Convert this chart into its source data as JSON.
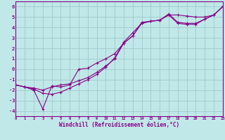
{
  "xlabel": "Windchill (Refroidissement éolien,°C)",
  "background_color": "#c0e8e8",
  "grid_color": "#a0c8c8",
  "line_color": "#880088",
  "xlim": [
    0,
    23
  ],
  "ylim": [
    -4.5,
    6.5
  ],
  "xticks": [
    0,
    1,
    2,
    3,
    4,
    5,
    6,
    7,
    8,
    9,
    10,
    11,
    12,
    13,
    14,
    15,
    16,
    17,
    18,
    19,
    20,
    21,
    22,
    23
  ],
  "yticks": [
    -4,
    -3,
    -2,
    -1,
    0,
    1,
    2,
    3,
    4,
    5,
    6
  ],
  "line1_x": [
    0,
    1,
    2,
    3,
    4,
    5,
    6,
    7,
    8,
    9,
    10,
    11,
    12,
    13,
    14,
    15,
    16,
    17,
    18,
    19,
    20,
    21,
    22,
    23
  ],
  "line1_y": [
    -1.5,
    -1.7,
    -1.8,
    -2.0,
    -1.7,
    -1.5,
    -1.4,
    -1.1,
    -0.8,
    -0.3,
    0.3,
    1.0,
    2.5,
    3.2,
    4.4,
    4.6,
    4.7,
    5.2,
    5.2,
    5.1,
    5.0,
    5.0,
    5.2,
    6.0
  ],
  "line2_x": [
    0,
    1,
    2,
    3,
    4,
    5,
    6,
    7,
    8,
    9,
    10,
    11,
    12,
    13,
    14,
    15,
    16,
    17,
    18,
    19,
    20,
    21,
    22,
    23
  ],
  "line2_y": [
    -1.5,
    -1.7,
    -2.0,
    -3.8,
    -1.6,
    -1.7,
    -1.5,
    0.0,
    0.1,
    0.6,
    1.0,
    1.5,
    2.5,
    3.2,
    4.5,
    4.6,
    4.7,
    5.3,
    4.5,
    4.4,
    4.4,
    4.8,
    5.2,
    6.0
  ],
  "line3_x": [
    0,
    1,
    2,
    3,
    4,
    5,
    6,
    7,
    8,
    9,
    10,
    11,
    12,
    13,
    14,
    15,
    16,
    17,
    18,
    19,
    20,
    21,
    22,
    23
  ],
  "line3_y": [
    -1.5,
    -1.7,
    -1.9,
    -2.3,
    -2.4,
    -2.2,
    -1.8,
    -1.4,
    -1.0,
    -0.5,
    0.2,
    1.1,
    2.6,
    3.5,
    4.4,
    4.6,
    4.7,
    5.2,
    4.4,
    4.3,
    4.3,
    4.8,
    5.2,
    6.0
  ]
}
